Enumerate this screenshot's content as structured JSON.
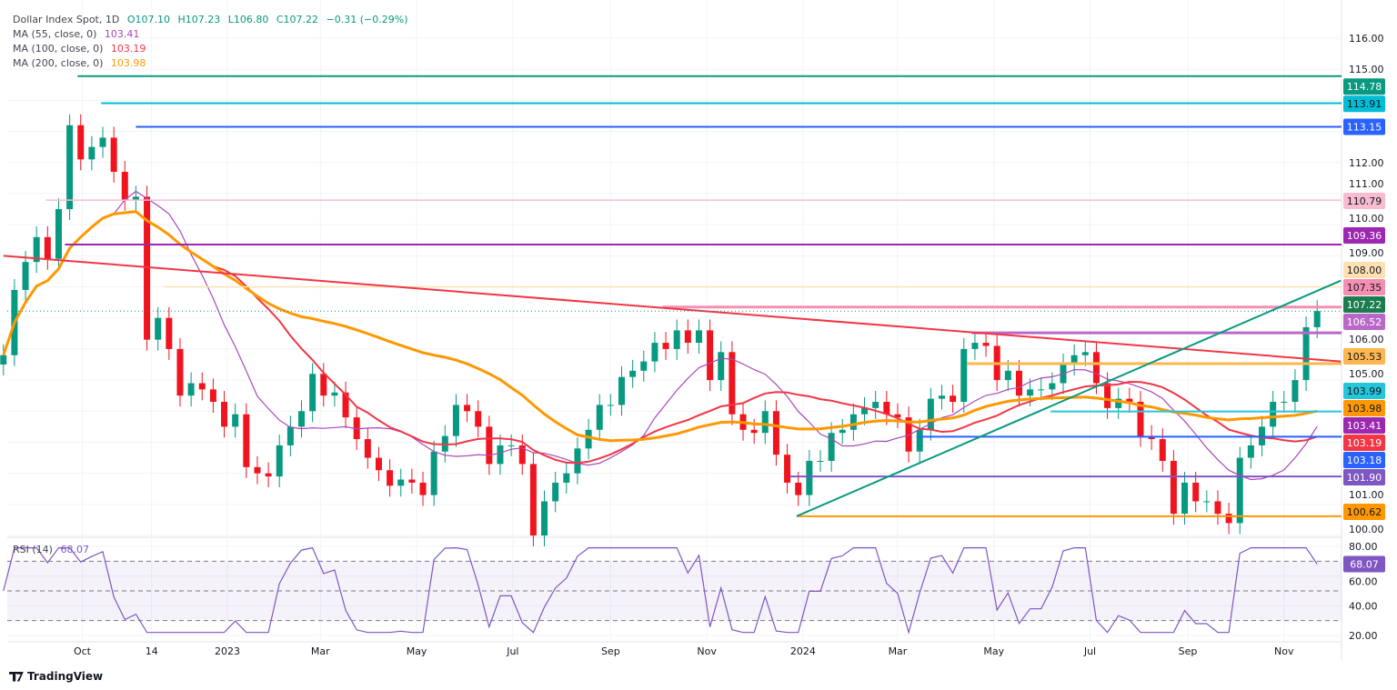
{
  "header": {
    "symbol": "Dollar Index Spot, 1D",
    "open": "O107.10",
    "high": "H107.23",
    "low": "L106.80",
    "close": "C107.22",
    "change": "−0.31 (−0.29%)"
  },
  "indicators": [
    {
      "label": "MA (55, close, 0)",
      "value": "103.41",
      "color": "#ab47bc"
    },
    {
      "label": "MA (100, close, 0)",
      "value": "103.19",
      "color": "#f23645"
    },
    {
      "label": "MA (200, close, 0)",
      "value": "103.98",
      "color": "#ff9800"
    }
  ],
  "rsi": {
    "label": "RSI (14)",
    "value": "68.07",
    "color": "#7e57c2",
    "levels": [
      70,
      50,
      30
    ],
    "ticks": [
      "80.00",
      "60.00",
      "40.00",
      "20.00"
    ],
    "ylim": [
      20,
      80
    ]
  },
  "footer": {
    "brand": "TradingView"
  },
  "chart_data": {
    "type": "candlestick",
    "title": "Dollar Index Spot, 1D",
    "ylim": [
      99.7,
      117.2
    ],
    "y_ticks": [
      "116.00",
      "115.00",
      "112.00",
      "111.00",
      "110.00",
      "109.00",
      "106.00",
      "105.00",
      "101.00",
      "100.00"
    ],
    "x_ticks": [
      {
        "label": "Oct",
        "date": "2022-10-01"
      },
      {
        "label": "14",
        "date": "2022-11-14"
      },
      {
        "label": "2023",
        "date": "2023-01-01"
      },
      {
        "label": "Mar",
        "date": "2023-03-01"
      },
      {
        "label": "May",
        "date": "2023-05-01"
      },
      {
        "label": "Jul",
        "date": "2023-07-01"
      },
      {
        "label": "Sep",
        "date": "2023-09-01"
      },
      {
        "label": "Nov",
        "date": "2023-11-01"
      },
      {
        "label": "2024",
        "date": "2024-01-01"
      },
      {
        "label": "Mar",
        "date": "2024-03-01"
      },
      {
        "label": "May",
        "date": "2024-05-01"
      },
      {
        "label": "Jul",
        "date": "2024-07-01"
      },
      {
        "label": "Sep",
        "date": "2024-09-01"
      },
      {
        "label": "Nov",
        "date": "2024-11-01"
      }
    ],
    "grid": true,
    "up_color": "#089981",
    "down_color": "#f0141e",
    "closes": [
      [
        "2022-08-12",
        105.8
      ],
      [
        "2022-08-19",
        107.9
      ],
      [
        "2022-08-26",
        108.8
      ],
      [
        "2022-09-02",
        109.6
      ],
      [
        "2022-09-09",
        108.9
      ],
      [
        "2022-09-16",
        110.5
      ],
      [
        "2022-09-23",
        113.2
      ],
      [
        "2022-09-30",
        112.1
      ],
      [
        "2022-10-07",
        112.5
      ],
      [
        "2022-10-14",
        112.8
      ],
      [
        "2022-10-21",
        111.7
      ],
      [
        "2022-10-28",
        110.8
      ],
      [
        "2022-11-04",
        110.9
      ],
      [
        "2022-11-11",
        106.3
      ],
      [
        "2022-11-18",
        107.0
      ],
      [
        "2022-11-25",
        106.0
      ],
      [
        "2022-12-02",
        104.5
      ],
      [
        "2022-12-09",
        104.9
      ],
      [
        "2022-12-16",
        104.7
      ],
      [
        "2022-12-23",
        104.3
      ],
      [
        "2022-12-30",
        103.5
      ],
      [
        "2023-01-06",
        103.9
      ],
      [
        "2023-01-13",
        102.2
      ],
      [
        "2023-01-20",
        102.0
      ],
      [
        "2023-01-27",
        101.9
      ],
      [
        "2023-02-03",
        102.9
      ],
      [
        "2023-02-10",
        103.5
      ],
      [
        "2023-02-17",
        104.0
      ],
      [
        "2023-02-24",
        105.2
      ],
      [
        "2023-03-03",
        104.5
      ],
      [
        "2023-03-10",
        104.6
      ],
      [
        "2023-03-17",
        103.8
      ],
      [
        "2023-03-24",
        103.1
      ],
      [
        "2023-03-31",
        102.5
      ],
      [
        "2023-04-07",
        102.1
      ],
      [
        "2023-04-14",
        101.6
      ],
      [
        "2023-04-21",
        101.8
      ],
      [
        "2023-04-28",
        101.7
      ],
      [
        "2023-05-05",
        101.3
      ],
      [
        "2023-05-12",
        102.7
      ],
      [
        "2023-05-19",
        103.2
      ],
      [
        "2023-05-26",
        104.2
      ],
      [
        "2023-06-02",
        104.0
      ],
      [
        "2023-06-09",
        103.5
      ],
      [
        "2023-06-16",
        102.3
      ],
      [
        "2023-06-23",
        102.9
      ],
      [
        "2023-06-30",
        102.9
      ],
      [
        "2023-07-07",
        102.3
      ],
      [
        "2023-07-14",
        100.0
      ],
      [
        "2023-07-21",
        101.1
      ],
      [
        "2023-07-28",
        101.7
      ],
      [
        "2023-08-04",
        102.0
      ],
      [
        "2023-08-11",
        102.8
      ],
      [
        "2023-08-18",
        103.4
      ],
      [
        "2023-08-25",
        104.2
      ],
      [
        "2023-09-01",
        104.2
      ],
      [
        "2023-09-08",
        105.1
      ],
      [
        "2023-09-15",
        105.3
      ],
      [
        "2023-09-22",
        105.6
      ],
      [
        "2023-09-29",
        106.2
      ],
      [
        "2023-10-06",
        106.0
      ],
      [
        "2023-10-13",
        106.6
      ],
      [
        "2023-10-20",
        106.2
      ],
      [
        "2023-10-27",
        106.6
      ],
      [
        "2023-11-03",
        105.0
      ],
      [
        "2023-11-10",
        105.9
      ],
      [
        "2023-11-17",
        103.9
      ],
      [
        "2023-11-24",
        103.4
      ],
      [
        "2023-12-01",
        103.3
      ],
      [
        "2023-12-08",
        104.0
      ],
      [
        "2023-12-15",
        102.6
      ],
      [
        "2023-12-22",
        101.7
      ],
      [
        "2023-12-29",
        101.3
      ],
      [
        "2024-01-05",
        102.4
      ],
      [
        "2024-01-12",
        102.4
      ],
      [
        "2024-01-19",
        103.3
      ],
      [
        "2024-01-26",
        103.4
      ],
      [
        "2024-02-02",
        103.9
      ],
      [
        "2024-02-09",
        104.1
      ],
      [
        "2024-02-16",
        104.3
      ],
      [
        "2024-02-23",
        103.9
      ],
      [
        "2024-03-01",
        103.8
      ],
      [
        "2024-03-08",
        102.7
      ],
      [
        "2024-03-15",
        103.4
      ],
      [
        "2024-03-22",
        104.4
      ],
      [
        "2024-03-29",
        104.5
      ],
      [
        "2024-04-05",
        104.3
      ],
      [
        "2024-04-12",
        106.0
      ],
      [
        "2024-04-19",
        106.2
      ],
      [
        "2024-04-26",
        106.1
      ],
      [
        "2024-05-03",
        105.0
      ],
      [
        "2024-05-10",
        105.3
      ],
      [
        "2024-05-17",
        104.5
      ],
      [
        "2024-05-24",
        104.7
      ],
      [
        "2024-05-31",
        104.7
      ],
      [
        "2024-06-07",
        104.9
      ],
      [
        "2024-06-14",
        105.5
      ],
      [
        "2024-06-21",
        105.8
      ],
      [
        "2024-06-28",
        105.9
      ],
      [
        "2024-07-05",
        104.9
      ],
      [
        "2024-07-12",
        104.1
      ],
      [
        "2024-07-19",
        104.4
      ],
      [
        "2024-07-26",
        104.3
      ],
      [
        "2024-08-02",
        103.2
      ],
      [
        "2024-08-09",
        103.1
      ],
      [
        "2024-08-16",
        102.4
      ],
      [
        "2024-08-23",
        100.7
      ],
      [
        "2024-08-30",
        101.7
      ],
      [
        "2024-09-06",
        101.1
      ],
      [
        "2024-09-13",
        101.1
      ],
      [
        "2024-09-20",
        100.7
      ],
      [
        "2024-09-27",
        100.4
      ],
      [
        "2024-10-04",
        102.5
      ],
      [
        "2024-10-11",
        102.9
      ],
      [
        "2024-10-18",
        103.5
      ],
      [
        "2024-10-25",
        104.3
      ],
      [
        "2024-11-01",
        104.3
      ],
      [
        "2024-11-08",
        105.0
      ],
      [
        "2024-11-15",
        106.7
      ],
      [
        "2024-11-22",
        107.22
      ]
    ],
    "levels": [
      {
        "price": 114.78,
        "label": "114.78",
        "color": "#089981",
        "text": "#ffffff",
        "from": "2022-09-28",
        "width": 2
      },
      {
        "price": 113.91,
        "label": "113.91",
        "color": "#00bcd4",
        "text": "#131722",
        "from": "2022-10-13",
        "width": 2
      },
      {
        "price": 113.15,
        "label": "113.15",
        "color": "#2962ff",
        "text": "#ffffff",
        "from": "2022-11-04",
        "width": 2
      },
      {
        "price": 110.79,
        "label": "110.79",
        "color": "#f8bbd0",
        "text": "#131722",
        "from": "2022-09-08",
        "width": 1.5
      },
      {
        "price": 109.36,
        "label": "109.36",
        "color": "#9c27b0",
        "text": "#ffffff",
        "from": "2022-09-20",
        "width": 2
      },
      {
        "price": 108.0,
        "label": "108.00",
        "color": "#ffe0b2",
        "text": "#131722",
        "from": "2022-11-22",
        "width": 1.5
      },
      {
        "price": 107.35,
        "label": "107.35",
        "color": "#f48fb1",
        "text": "#131722",
        "from": "2023-10-04",
        "width": 3
      },
      {
        "price": 106.52,
        "label": "106.52",
        "color": "#ba68c8",
        "text": "#ffffff",
        "from": "2024-04-17",
        "width": 3
      },
      {
        "price": 105.53,
        "label": "105.53",
        "color": "#ffb74d",
        "text": "#131722",
        "from": "2024-04-14",
        "width": 3
      },
      {
        "price": 103.99,
        "label": "103.99",
        "color": "#26c6da",
        "text": "#131722",
        "from": "2024-06-06",
        "width": 2
      },
      {
        "price": 103.18,
        "label": "103.18",
        "color": "#2962ff",
        "text": "#ffffff",
        "from": "2024-03-13",
        "width": 2
      },
      {
        "price": 101.9,
        "label": "101.90",
        "color": "#7e57c2",
        "text": "#ffffff",
        "from": "2023-12-24",
        "width": 2
      },
      {
        "price": 100.62,
        "label": "100.62",
        "color": "#ff9800",
        "text": "#131722",
        "from": "2023-12-28",
        "width": 2
      }
    ],
    "price_tags": [
      {
        "price": 107.22,
        "label": "107.22",
        "color": "#1b7d4f",
        "text": "#ffffff"
      },
      {
        "price": 103.98,
        "label": "103.98",
        "color": "#ff9800",
        "text": "#131722",
        "slot": 103.55
      },
      {
        "price": 103.41,
        "label": "103.41",
        "color": "#9c27b0",
        "text": "#ffffff",
        "slot": 103.0
      },
      {
        "price": 103.19,
        "label": "103.19",
        "color": "#f23645",
        "text": "#ffffff",
        "slot": 102.45
      },
      {
        "price": 103.18,
        "label": "103.18",
        "color": "#2962ff",
        "text": "#ffffff",
        "slot": 101.9
      },
      {
        "price": 101.9,
        "label": "101.90",
        "color": "#7e57c2",
        "text": "#ffffff",
        "slot": 101.35
      }
    ],
    "trendlines": [
      {
        "color": "#f23645",
        "points": [
          [
            "2022-08-12",
            109.0
          ],
          [
            "2024-12-07",
            105.6
          ]
        ]
      },
      {
        "color": "#089981",
        "points": [
          [
            "2023-12-28",
            100.62
          ],
          [
            "2024-12-07",
            108.2
          ]
        ]
      }
    ],
    "last_price": 107.22,
    "moving_averages": [
      {
        "period": 55,
        "color": "#ab47bc",
        "value": 103.41
      },
      {
        "period": 100,
        "color": "#f23645",
        "value": 103.19
      },
      {
        "period": 200,
        "color": "#ff9800",
        "value": 103.98
      }
    ]
  }
}
